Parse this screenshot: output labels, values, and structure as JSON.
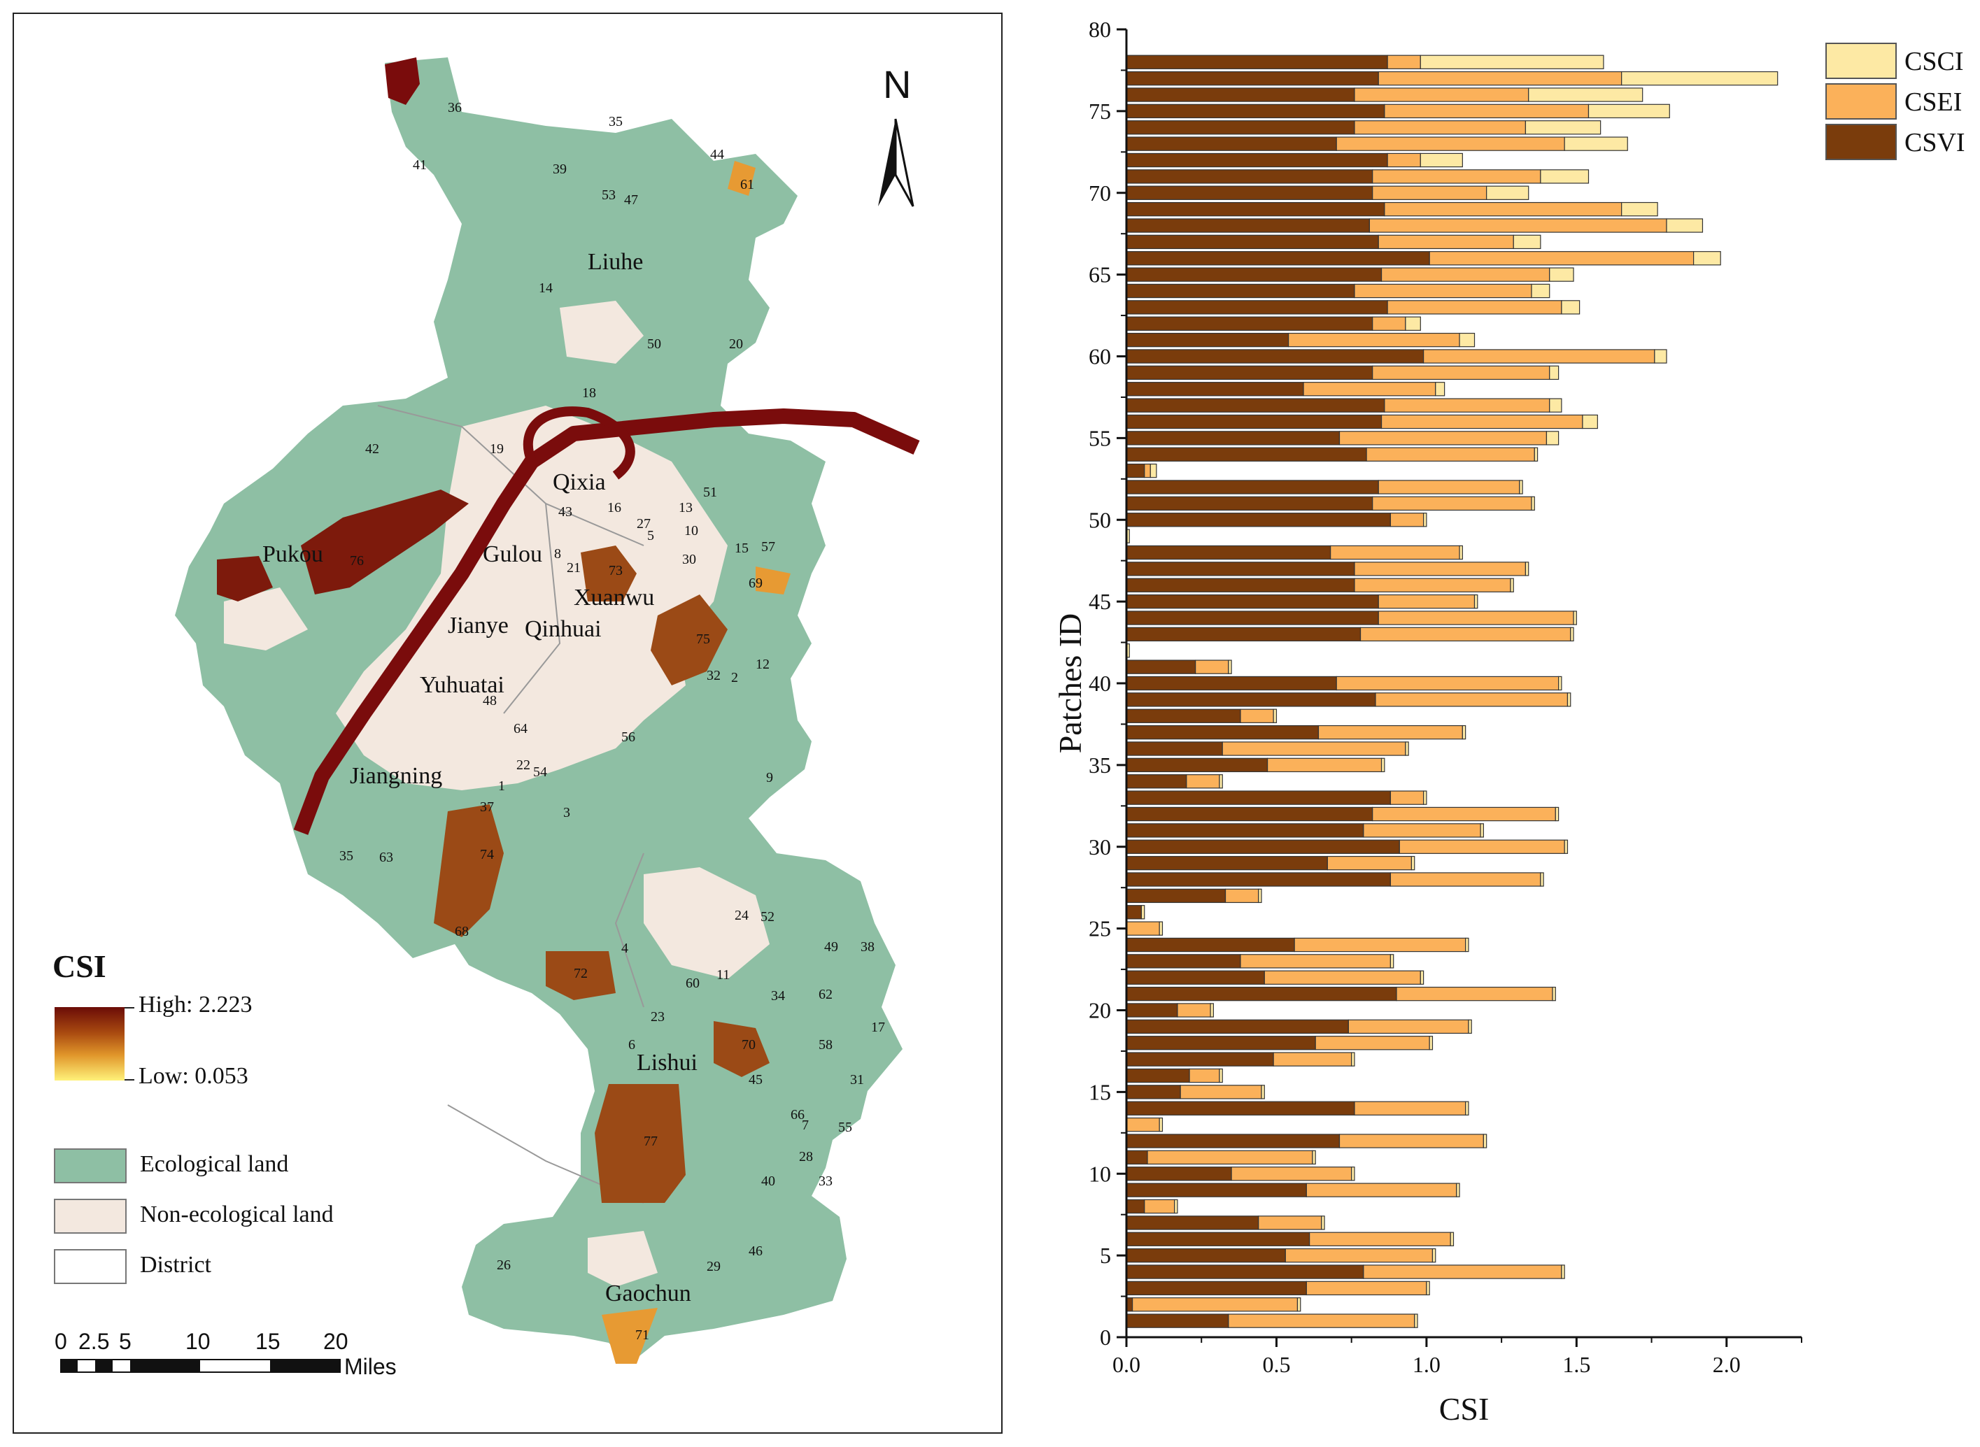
{
  "map": {
    "north_label": "N",
    "districts": [
      "Liuhe",
      "Qixia",
      "Pukou",
      "Gulou",
      "Xuanwu",
      "Jianye",
      "Qinhuai",
      "Yuhuatai",
      "Jiangning",
      "Lishui",
      "Gaochun"
    ],
    "patch_ids": [
      "36",
      "35",
      "41",
      "39",
      "44",
      "53",
      "47",
      "61",
      "14",
      "50",
      "20",
      "18",
      "42",
      "19",
      "51",
      "43",
      "16",
      "13",
      "27",
      "10",
      "5",
      "15",
      "57",
      "8",
      "21",
      "73",
      "30",
      "69",
      "76",
      "75",
      "12",
      "32",
      "2",
      "48",
      "64",
      "56",
      "22",
      "54",
      "1",
      "37",
      "3",
      "9",
      "35",
      "63",
      "74",
      "68",
      "24",
      "52",
      "49",
      "38",
      "4",
      "72",
      "60",
      "11",
      "34",
      "62",
      "23",
      "58",
      "17",
      "6",
      "70",
      "45",
      "31",
      "66",
      "7",
      "55",
      "77",
      "28",
      "40",
      "33",
      "46",
      "26",
      "29",
      "71"
    ],
    "legend": {
      "title": "CSI",
      "high": "High: 2.223",
      "low": "Low: 0.053",
      "eco": "Ecological land",
      "non_eco": "Non-ecological land",
      "district": "District"
    },
    "scale": {
      "ticks": [
        "0",
        "2.5",
        "5",
        "10",
        "15",
        "20"
      ],
      "unit": "Miles"
    },
    "colors": {
      "eco": "#8ebfa4",
      "non_eco": "#f3e8df",
      "high": "#6b0c07",
      "low": "#fff27a",
      "river": "#7a0c0c"
    }
  },
  "chart_data": {
    "type": "bar",
    "orientation": "horizontal-stacked",
    "ylabel": "Patches ID",
    "xlabel": "CSI",
    "xlim": [
      0,
      2.25
    ],
    "ylim": [
      0,
      80
    ],
    "xticks": [
      "0.0",
      "0.5",
      "1.0",
      "1.5",
      "2.0"
    ],
    "yticks": [
      "0",
      "5",
      "10",
      "15",
      "20",
      "25",
      "30",
      "35",
      "40",
      "45",
      "50",
      "55",
      "60",
      "65",
      "70",
      "75",
      "80"
    ],
    "legend": [
      "CSCI",
      "CSEI",
      "CSVI"
    ],
    "colors": {
      "CSVI": "#7a3c0c",
      "CSEI": "#fbb15a",
      "CSCI": "#fde9a4"
    },
    "ids": [
      1,
      2,
      3,
      4,
      5,
      6,
      7,
      8,
      9,
      10,
      11,
      12,
      13,
      14,
      15,
      16,
      17,
      18,
      19,
      20,
      21,
      22,
      23,
      24,
      25,
      26,
      27,
      28,
      29,
      30,
      31,
      32,
      33,
      34,
      35,
      36,
      37,
      38,
      39,
      40,
      41,
      42,
      43,
      44,
      45,
      46,
      47,
      48,
      49,
      50,
      51,
      52,
      53,
      54,
      55,
      56,
      57,
      58,
      59,
      60,
      61,
      62,
      63,
      64,
      65,
      66,
      67,
      68,
      69,
      70,
      71,
      72,
      73,
      74,
      75,
      76,
      77,
      78
    ],
    "series": [
      {
        "name": "CSVI",
        "values": [
          0.34,
          0.02,
          0.6,
          0.79,
          0.53,
          0.61,
          0.44,
          0.06,
          0.6,
          0.35,
          0.07,
          0.71,
          0.0,
          0.76,
          0.18,
          0.21,
          0.49,
          0.63,
          0.74,
          0.17,
          0.9,
          0.46,
          0.38,
          0.56,
          0.0,
          0.05,
          0.33,
          0.88,
          0.67,
          0.91,
          0.79,
          0.82,
          0.88,
          0.2,
          0.47,
          0.32,
          0.64,
          0.38,
          0.83,
          0.7,
          0.23,
          0.0,
          0.78,
          0.84,
          0.84,
          0.76,
          0.76,
          0.68,
          0.0,
          0.88,
          0.82,
          0.84,
          0.06,
          0.8,
          0.71,
          0.85,
          0.86,
          0.59,
          0.82,
          0.99,
          0.54,
          0.82,
          0.87,
          0.76,
          0.85,
          1.01,
          0.84,
          0.81,
          0.86,
          0.82,
          0.82,
          0.87,
          0.7,
          0.76,
          0.86,
          0.76,
          0.84,
          0.87
        ]
      },
      {
        "name": "CSEI",
        "values": [
          0.62,
          0.55,
          0.4,
          0.66,
          0.49,
          0.47,
          0.21,
          0.1,
          0.5,
          0.4,
          0.55,
          0.48,
          0.11,
          0.37,
          0.27,
          0.1,
          0.26,
          0.38,
          0.4,
          0.11,
          0.52,
          0.52,
          0.5,
          0.57,
          0.11,
          0.0,
          0.11,
          0.5,
          0.28,
          0.55,
          0.39,
          0.61,
          0.11,
          0.11,
          0.38,
          0.61,
          0.48,
          0.11,
          0.64,
          0.74,
          0.11,
          0.0,
          0.7,
          0.65,
          0.32,
          0.52,
          0.57,
          0.43,
          0.0,
          0.11,
          0.53,
          0.47,
          0.02,
          0.56,
          0.69,
          0.67,
          0.55,
          0.44,
          0.59,
          0.77,
          0.57,
          0.11,
          0.58,
          0.59,
          0.56,
          0.88,
          0.45,
          0.99,
          0.79,
          0.38,
          0.56,
          0.11,
          0.76,
          0.57,
          0.68,
          0.58,
          0.81,
          0.11
        ]
      },
      {
        "name": "CSCI",
        "values": [
          0.01,
          0.01,
          0.01,
          0.01,
          0.01,
          0.01,
          0.01,
          0.01,
          0.01,
          0.01,
          0.01,
          0.01,
          0.01,
          0.01,
          0.01,
          0.01,
          0.01,
          0.01,
          0.01,
          0.01,
          0.01,
          0.01,
          0.01,
          0.01,
          0.01,
          0.01,
          0.01,
          0.01,
          0.01,
          0.01,
          0.01,
          0.01,
          0.01,
          0.01,
          0.01,
          0.01,
          0.01,
          0.01,
          0.01,
          0.01,
          0.01,
          0.01,
          0.01,
          0.01,
          0.01,
          0.01,
          0.01,
          0.01,
          0.01,
          0.01,
          0.01,
          0.01,
          0.02,
          0.01,
          0.04,
          0.05,
          0.04,
          0.03,
          0.03,
          0.04,
          0.05,
          0.05,
          0.06,
          0.06,
          0.08,
          0.09,
          0.09,
          0.12,
          0.12,
          0.14,
          0.16,
          0.14,
          0.21,
          0.25,
          0.27,
          0.38,
          0.52,
          0.61
        ]
      }
    ]
  }
}
